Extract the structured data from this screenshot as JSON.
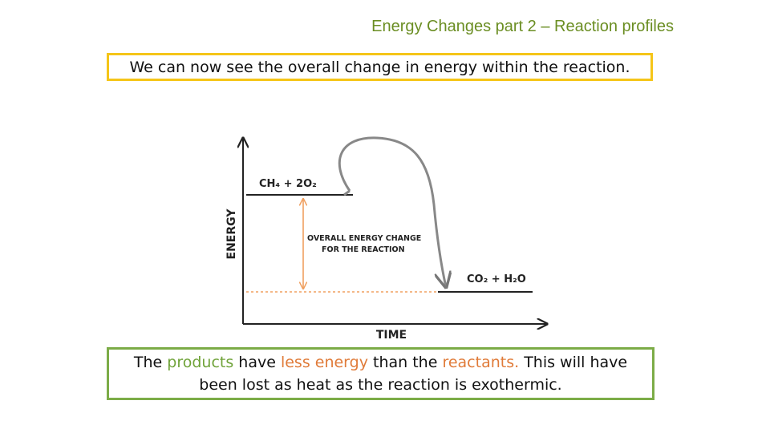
{
  "title": "Energy Changes part 2 – Reaction profiles",
  "intro_text": "We can now see the overall change in energy within the reaction.",
  "diagram": {
    "y_axis_label": "ENERGY",
    "x_axis_label": "TIME",
    "reactants_label": "CH₄ + 2O₂",
    "products_label": "CO₂ + H₂O",
    "change_label_line1": "OVERALL ENERGY CHANGE",
    "change_label_line2": "FOR THE REACTION"
  },
  "conclusion": {
    "line1": {
      "part1": "The ",
      "part2": "products",
      "part3": " have ",
      "part4": "less energy",
      "part5": " than the ",
      "part6": "reactants.",
      "part7": " This will have"
    },
    "line2": "been lost as heat as the reaction is exothermic."
  },
  "colors": {
    "title": "#6b8e23",
    "top_box_border": "#f5c518",
    "bottom_box_border": "#7cac47",
    "highlight_green": "#70a33a",
    "highlight_orange": "#e07b39",
    "energy_change_arrow": "#f0a060"
  }
}
